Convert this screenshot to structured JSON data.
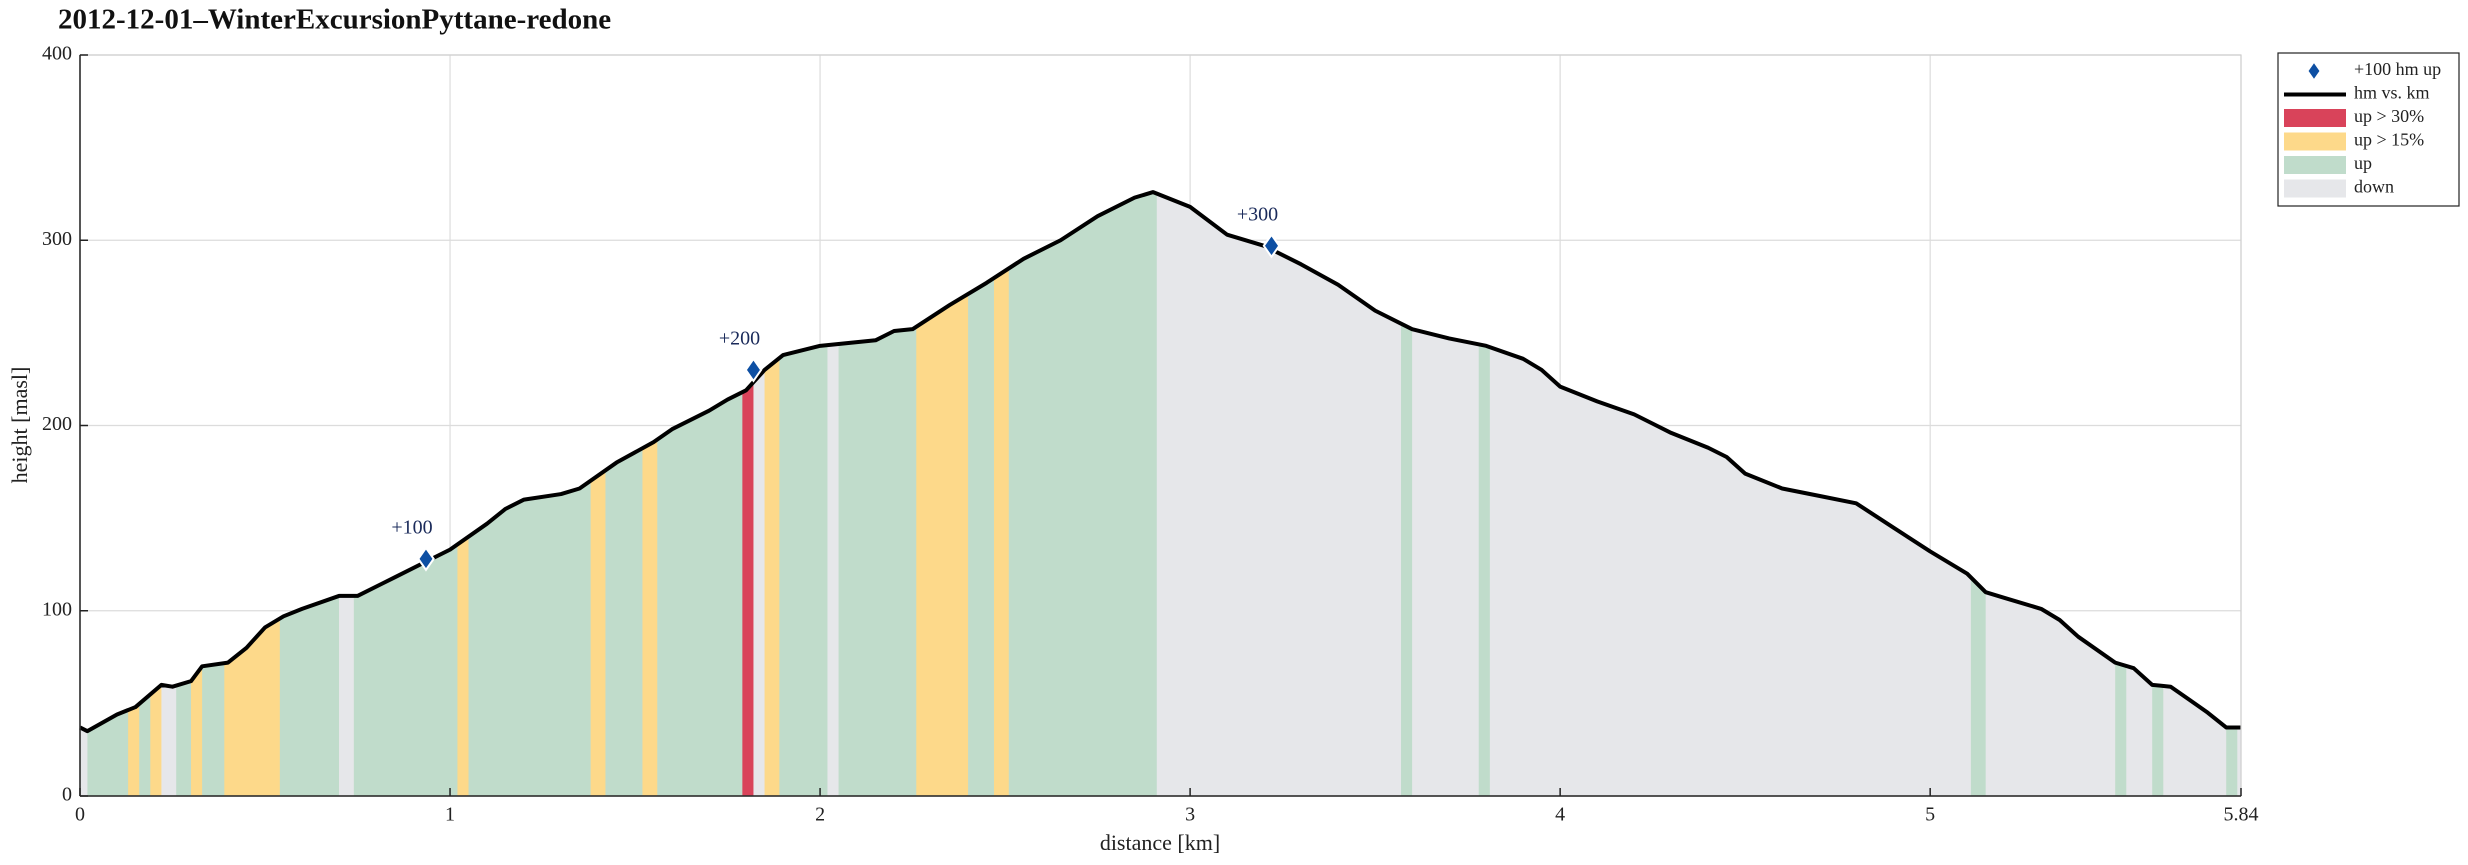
{
  "chart_data": {
    "type": "area",
    "title": "2012-12-01–WinterExcursionPyttane-redone",
    "xlabel": "distance [km]",
    "ylabel": "height [masl]",
    "xlim": [
      0,
      5.84
    ],
    "ylim": [
      0,
      400
    ],
    "xticks": [
      0,
      1,
      2,
      3,
      4,
      5,
      5.84
    ],
    "yticks": [
      0,
      100,
      200,
      300,
      400
    ],
    "grid": true,
    "legend": "outside upper right",
    "series": [
      {
        "name": "hm vs. km",
        "color": "#000000",
        "x": [
          0,
          0.02,
          0.1,
          0.15,
          0.22,
          0.25,
          0.3,
          0.33,
          0.4,
          0.45,
          0.5,
          0.55,
          0.6,
          0.7,
          0.75,
          0.85,
          0.95,
          1.0,
          1.1,
          1.15,
          1.2,
          1.3,
          1.35,
          1.45,
          1.55,
          1.6,
          1.7,
          1.75,
          1.8,
          1.85,
          1.9,
          2.0,
          2.05,
          2.15,
          2.2,
          2.25,
          2.35,
          2.45,
          2.55,
          2.65,
          2.75,
          2.85,
          2.9,
          3.0,
          3.1,
          3.2,
          3.3,
          3.4,
          3.5,
          3.6,
          3.7,
          3.8,
          3.9,
          3.95,
          4.0,
          4.1,
          4.2,
          4.3,
          4.4,
          4.45,
          4.5,
          4.6,
          4.7,
          4.8,
          4.9,
          5.0,
          5.1,
          5.15,
          5.2,
          5.3,
          5.35,
          5.4,
          5.5,
          5.55,
          5.6,
          5.65,
          5.7,
          5.75,
          5.8,
          5.84
        ],
        "values": [
          37,
          35,
          44,
          48,
          60,
          59,
          62,
          70,
          72,
          80,
          91,
          97,
          101,
          108,
          108,
          118,
          128,
          133,
          147,
          155,
          160,
          163,
          166,
          180,
          191,
          198,
          208,
          214,
          219,
          230,
          238,
          243,
          244,
          246,
          251,
          252,
          265,
          277,
          290,
          300,
          313,
          323,
          326,
          318,
          303,
          297,
          287,
          276,
          262,
          252,
          247,
          243,
          236,
          230,
          221,
          213,
          206,
          196,
          188,
          183,
          174,
          166,
          162,
          158,
          145,
          132,
          120,
          110,
          107,
          101,
          95,
          86,
          72,
          69,
          60,
          59,
          52,
          45,
          37,
          37
        ]
      }
    ],
    "markers": {
      "name": "+100 hm up",
      "color": "#0d4fa3",
      "x": [
        0.935,
        1.82,
        3.22
      ],
      "values": [
        128,
        230,
        297
      ],
      "labels": [
        "+100",
        "+200",
        "+300"
      ]
    },
    "classes": [
      {
        "name": "up > 30%",
        "color": "#d9435a"
      },
      {
        "name": "up > 15%",
        "color": "#fdd98a"
      },
      {
        "name": "up",
        "color": "#c0dccb"
      },
      {
        "name": "down",
        "color": "#e6e7ea"
      }
    ],
    "bands": [
      {
        "class": "down",
        "x": [
          0,
          0.02
        ]
      },
      {
        "class": "up",
        "x": [
          0.02,
          0.13
        ]
      },
      {
        "class": "up > 15%",
        "x": [
          0.13,
          0.16
        ]
      },
      {
        "class": "up",
        "x": [
          0.16,
          0.19
        ]
      },
      {
        "class": "up > 15%",
        "x": [
          0.19,
          0.22
        ]
      },
      {
        "class": "down",
        "x": [
          0.22,
          0.26
        ]
      },
      {
        "class": "up",
        "x": [
          0.26,
          0.3
        ]
      },
      {
        "class": "up > 15%",
        "x": [
          0.3,
          0.33
        ]
      },
      {
        "class": "up",
        "x": [
          0.33,
          0.39
        ]
      },
      {
        "class": "up > 15%",
        "x": [
          0.39,
          0.54
        ]
      },
      {
        "class": "up",
        "x": [
          0.54,
          0.7
        ]
      },
      {
        "class": "down",
        "x": [
          0.7,
          0.74
        ]
      },
      {
        "class": "up",
        "x": [
          0.74,
          1.02
        ]
      },
      {
        "class": "up > 15%",
        "x": [
          1.02,
          1.05
        ]
      },
      {
        "class": "up",
        "x": [
          1.05,
          1.38
        ]
      },
      {
        "class": "up > 15%",
        "x": [
          1.38,
          1.42
        ]
      },
      {
        "class": "up",
        "x": [
          1.42,
          1.52
        ]
      },
      {
        "class": "up > 15%",
        "x": [
          1.52,
          1.56
        ]
      },
      {
        "class": "up",
        "x": [
          1.56,
          1.79
        ]
      },
      {
        "class": "up > 30%",
        "x": [
          1.79,
          1.82
        ]
      },
      {
        "class": "down",
        "x": [
          1.82,
          1.85
        ]
      },
      {
        "class": "up > 15%",
        "x": [
          1.85,
          1.89
        ]
      },
      {
        "class": "up",
        "x": [
          1.89,
          2.02
        ]
      },
      {
        "class": "down",
        "x": [
          2.02,
          2.05
        ]
      },
      {
        "class": "up",
        "x": [
          2.05,
          2.26
        ]
      },
      {
        "class": "up > 15%",
        "x": [
          2.26,
          2.4
        ]
      },
      {
        "class": "up",
        "x": [
          2.4,
          2.47
        ]
      },
      {
        "class": "up > 15%",
        "x": [
          2.47,
          2.51
        ]
      },
      {
        "class": "up",
        "x": [
          2.51,
          2.91
        ]
      },
      {
        "class": "down",
        "x": [
          2.91,
          3.57
        ]
      },
      {
        "class": "up",
        "x": [
          3.57,
          3.6
        ]
      },
      {
        "class": "down",
        "x": [
          3.6,
          3.78
        ]
      },
      {
        "class": "up",
        "x": [
          3.78,
          3.81
        ]
      },
      {
        "class": "down",
        "x": [
          3.81,
          5.11
        ]
      },
      {
        "class": "up",
        "x": [
          5.11,
          5.15
        ]
      },
      {
        "class": "down",
        "x": [
          5.15,
          5.5
        ]
      },
      {
        "class": "up",
        "x": [
          5.5,
          5.53
        ]
      },
      {
        "class": "down",
        "x": [
          5.53,
          5.6
        ]
      },
      {
        "class": "up",
        "x": [
          5.6,
          5.63
        ]
      },
      {
        "class": "down",
        "x": [
          5.63,
          5.8
        ]
      },
      {
        "class": "up",
        "x": [
          5.8,
          5.83
        ]
      },
      {
        "class": "down",
        "x": [
          5.83,
          5.84
        ]
      }
    ]
  }
}
